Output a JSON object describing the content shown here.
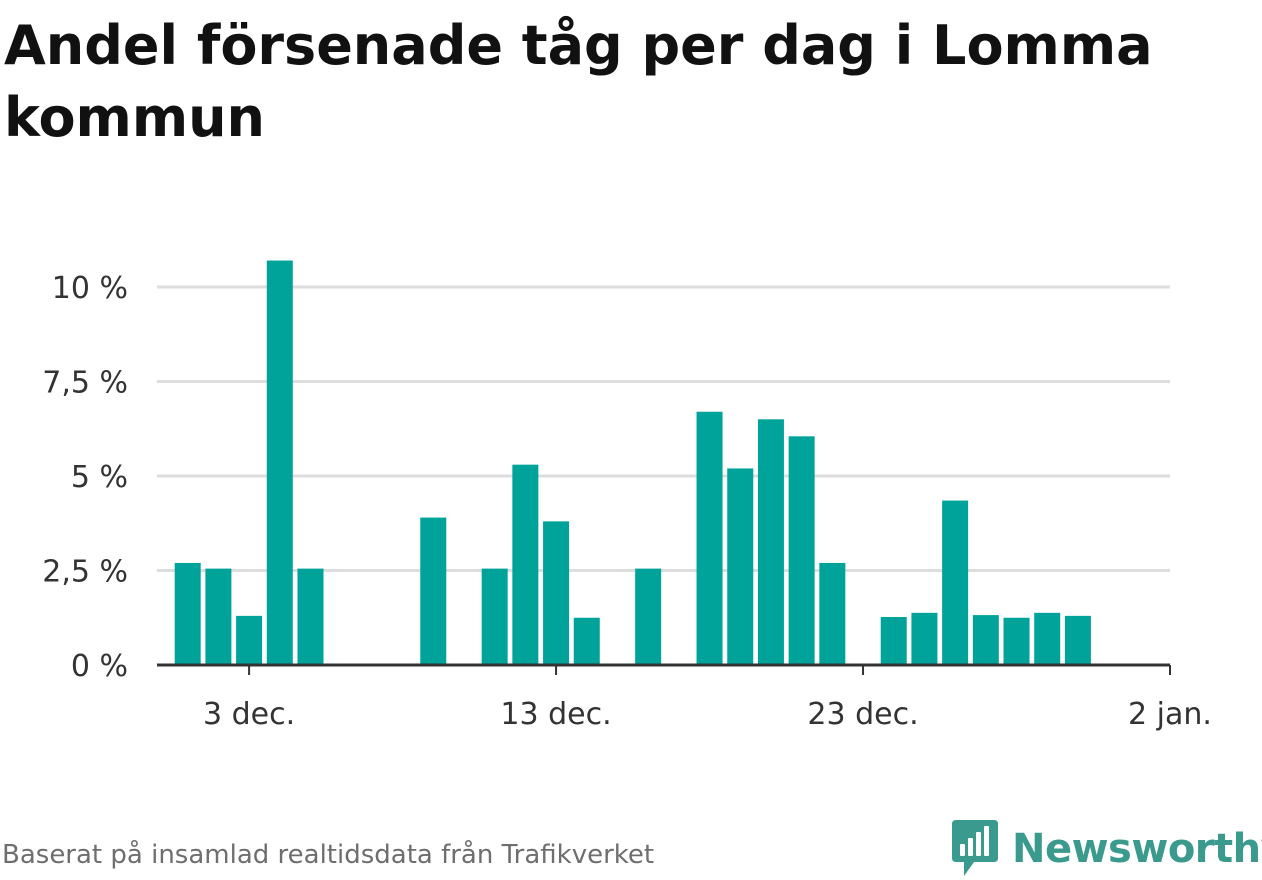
{
  "title": "Andel försenade tåg per dag i Lomma kommun",
  "footer": {
    "source": "Baserat på insamlad realtidsdata från Trafikverket"
  },
  "logo": {
    "text": "Newsworthy",
    "icon": "newsworthy-logo-icon"
  },
  "colors": {
    "bar": "#00a39a",
    "grid": "#dddddd",
    "axis": "#333333",
    "brand": "#3a9a8e"
  },
  "chart_data": {
    "type": "bar",
    "title": "Andel försenade tåg per dag i Lomma kommun",
    "xlabel": "",
    "ylabel": "",
    "x_domain": [
      "2023-11-30",
      "2024-01-02"
    ],
    "ylim": [
      0,
      10.5
    ],
    "grid": true,
    "legend": "none",
    "y_ticks": [
      {
        "value": 0,
        "label": "0 %"
      },
      {
        "value": 2.5,
        "label": "2,5 %"
      },
      {
        "value": 5,
        "label": "5 %"
      },
      {
        "value": 7.5,
        "label": "7,5 %"
      },
      {
        "value": 10,
        "label": "10 %"
      }
    ],
    "x_ticks": [
      {
        "date": "2023-12-03",
        "label": "3 dec."
      },
      {
        "date": "2023-12-13",
        "label": "13 dec."
      },
      {
        "date": "2023-12-23",
        "label": "23 dec."
      },
      {
        "date": "2024-01-02",
        "label": "2 jan."
      }
    ],
    "dates": [
      "2023-12-01",
      "2023-12-02",
      "2023-12-03",
      "2023-12-04",
      "2023-12-05",
      "2023-12-06",
      "2023-12-07",
      "2023-12-08",
      "2023-12-09",
      "2023-12-10",
      "2023-12-11",
      "2023-12-12",
      "2023-12-13",
      "2023-12-14",
      "2023-12-15",
      "2023-12-16",
      "2023-12-17",
      "2023-12-18",
      "2023-12-19",
      "2023-12-20",
      "2023-12-21",
      "2023-12-22",
      "2023-12-23",
      "2023-12-24",
      "2023-12-25",
      "2023-12-26",
      "2023-12-27",
      "2023-12-28",
      "2023-12-29",
      "2023-12-30",
      "2023-12-31"
    ],
    "values": [
      2.7,
      2.55,
      1.3,
      10.7,
      2.55,
      0,
      0,
      0,
      3.9,
      0,
      2.55,
      5.3,
      3.8,
      1.25,
      0,
      2.55,
      0,
      6.7,
      5.2,
      6.5,
      6.05,
      2.7,
      0,
      1.27,
      1.38,
      4.35,
      1.32,
      1.25,
      1.38,
      1.3,
      0
    ]
  }
}
